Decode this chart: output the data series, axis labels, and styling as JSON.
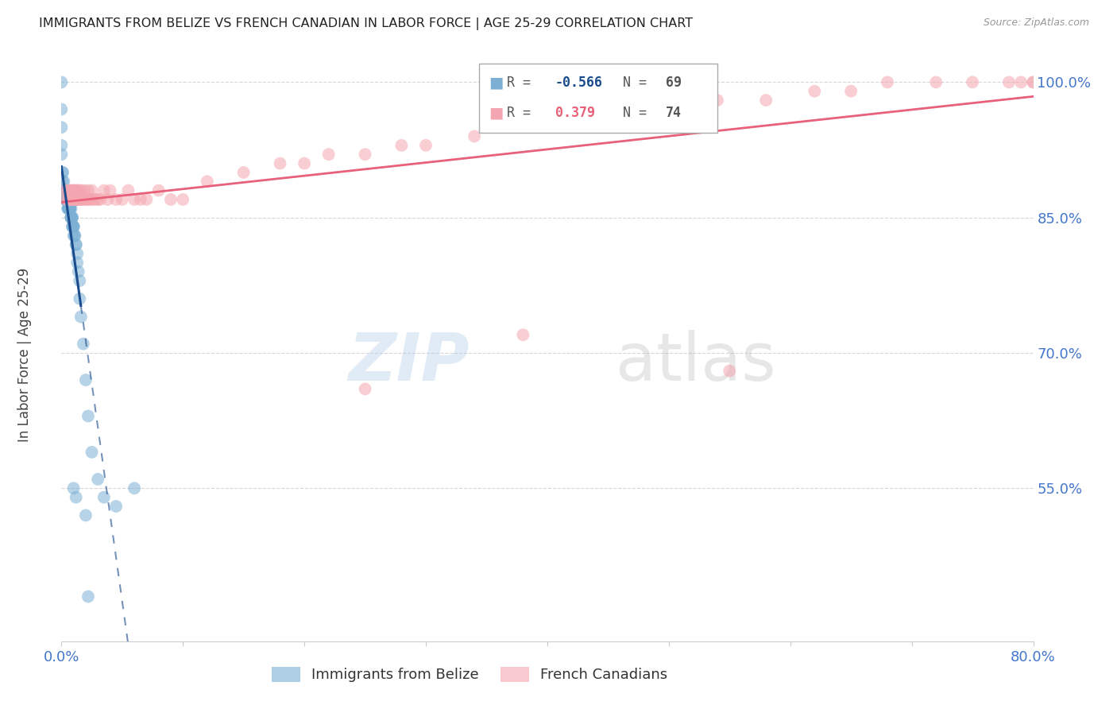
{
  "title": "IMMIGRANTS FROM BELIZE VS FRENCH CANADIAN IN LABOR FORCE | AGE 25-29 CORRELATION CHART",
  "source": "Source: ZipAtlas.com",
  "ylabel": "In Labor Force | Age 25-29",
  "ytick_values": [
    0.55,
    0.7,
    0.85,
    1.0
  ],
  "xlim": [
    0.0,
    0.8
  ],
  "ylim": [
    0.38,
    1.04
  ],
  "legend_r_belize": "-0.566",
  "legend_n_belize": "69",
  "legend_r_french": "0.379",
  "legend_n_french": "74",
  "belize_color": "#7bafd4",
  "french_color": "#f4a6b0",
  "belize_line_color": "#1a4b8c",
  "french_line_color": "#e8607a",
  "background_color": "#ffffff",
  "grid_color": "#cccccc",
  "title_color": "#222222",
  "tick_color": "#4477cc"
}
